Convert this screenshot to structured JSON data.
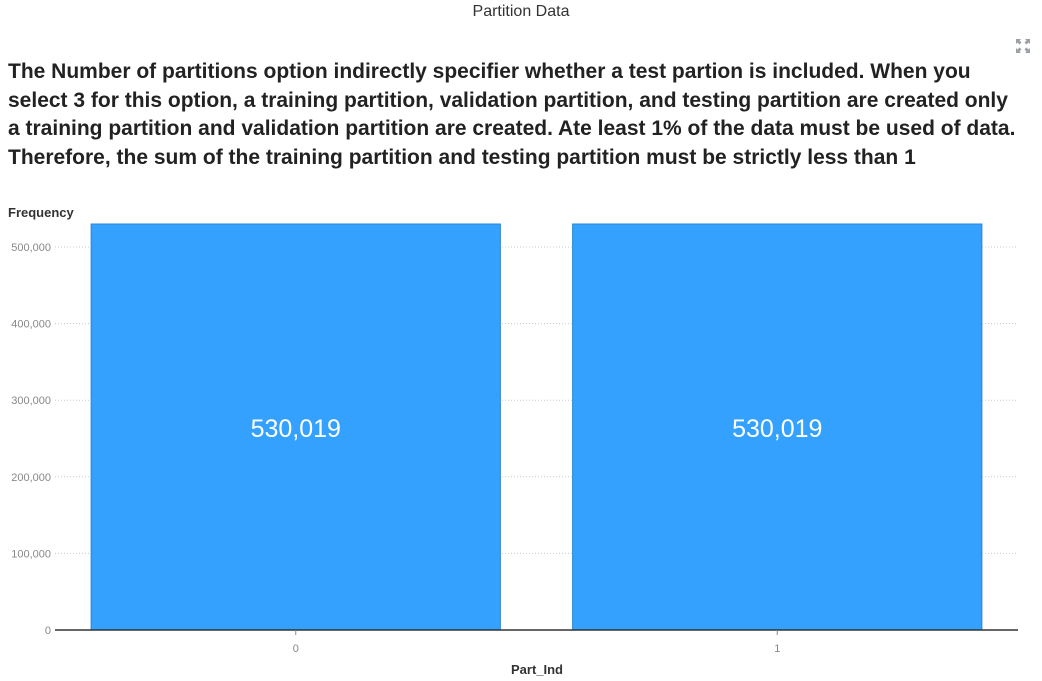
{
  "window": {
    "title": "Partition Data",
    "maximize_icon": "expand-arrows-icon"
  },
  "description": "The Number of partitions option indirectly specifier whether a test partion is included. When you select 3 for this option, a training partition, validation partition, and testing partition are created only a training partition and validation partition are created. Ate least 1% of the data must be used of data. Therefore, the sum of the training partition and testing partition must be strictly less than 1",
  "colors": {
    "bar_fill": "#33a1fd",
    "bar_stroke": "#2a86d4",
    "grid": "#c8c8c8",
    "axis": "#333333"
  },
  "chart_data": {
    "type": "bar",
    "categories": [
      "0",
      "1"
    ],
    "values": [
      530019,
      530019
    ],
    "value_labels": [
      "530,019",
      "530,019"
    ],
    "xlabel": "Part_Ind",
    "ylabel": "Frequency",
    "ylim": [
      0,
      530019
    ],
    "yticks": [
      0,
      100000,
      200000,
      300000,
      400000,
      500000
    ],
    "ytick_labels": [
      "0",
      "100,000",
      "200,000",
      "300,000",
      "400,000",
      "500,000"
    ],
    "grid": true,
    "grid_style": "dotted",
    "legend": "none"
  }
}
